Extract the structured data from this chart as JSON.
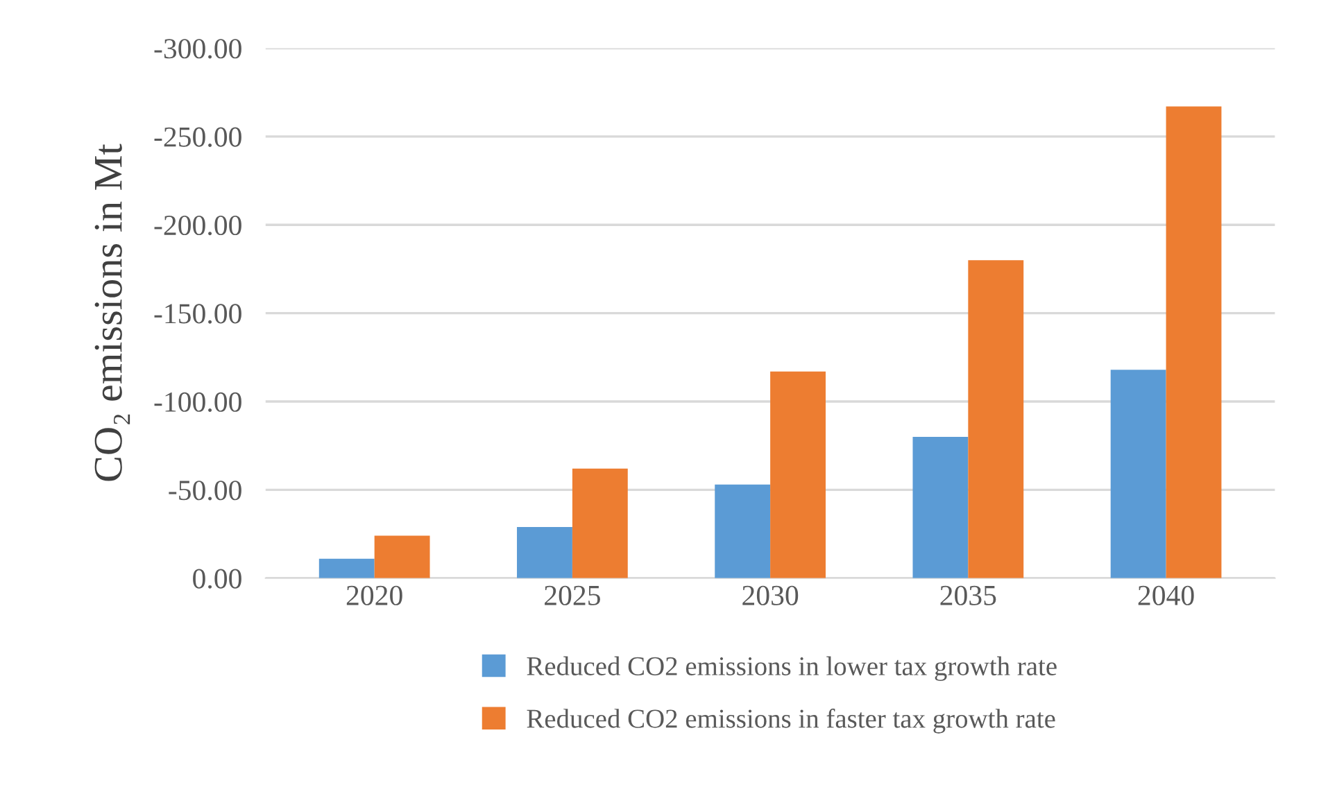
{
  "chart_data": {
    "type": "bar",
    "ylabel": "CO₂ emissions in Mt",
    "categories": [
      "2020",
      "2025",
      "2030",
      "2035",
      "2040"
    ],
    "series": [
      {
        "name": "Reduced CO2 emissions in lower tax growth rate",
        "color": "#5b9bd5",
        "values": [
          -11,
          -29,
          -53,
          -80,
          -118
        ]
      },
      {
        "name": "Reduced CO2 emissions in faster tax growth rate",
        "color": "#ed7d31",
        "values": [
          -24,
          -62,
          -117,
          -180,
          -267
        ]
      }
    ],
    "ylim": [
      0,
      -300
    ],
    "yticks": [
      {
        "value": 0,
        "label": "0.00"
      },
      {
        "value": -50,
        "label": "-50.00"
      },
      {
        "value": -100,
        "label": "-100.00"
      },
      {
        "value": -150,
        "label": "-150.00"
      },
      {
        "value": -200,
        "label": "-200.00"
      },
      {
        "value": -250,
        "label": "-250.00"
      },
      {
        "value": -300,
        "label": "-300.00"
      }
    ],
    "grid": "y",
    "legend": "bottom"
  }
}
